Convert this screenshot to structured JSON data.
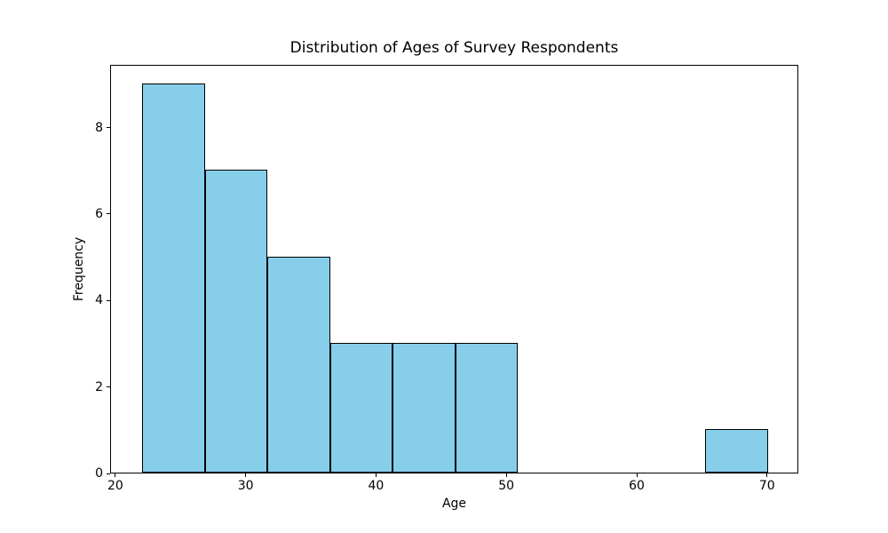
{
  "figure": {
    "background_color": "#ffffff",
    "text_color": "#000000"
  },
  "chart_data": {
    "type": "bar",
    "kind": "histogram",
    "title": "Distribution of Ages of Survey Respondents",
    "xlabel": "Age",
    "ylabel": "Frequency",
    "bin_edges": [
      22.0,
      26.8,
      31.6,
      36.4,
      41.2,
      46.0,
      50.8,
      55.6,
      60.4,
      65.2,
      70.0
    ],
    "counts": [
      9,
      7,
      5,
      3,
      3,
      3,
      0,
      0,
      0,
      1
    ],
    "xlim": [
      19.6,
      72.4
    ],
    "ylim": [
      0,
      9.45
    ],
    "xticks": [
      20,
      30,
      40,
      50,
      60,
      70
    ],
    "yticks": [
      0,
      2,
      4,
      6,
      8
    ],
    "bar_fill_color": "#87CEEB",
    "bar_edge_color": "#000000",
    "grid": false,
    "legend": null
  }
}
